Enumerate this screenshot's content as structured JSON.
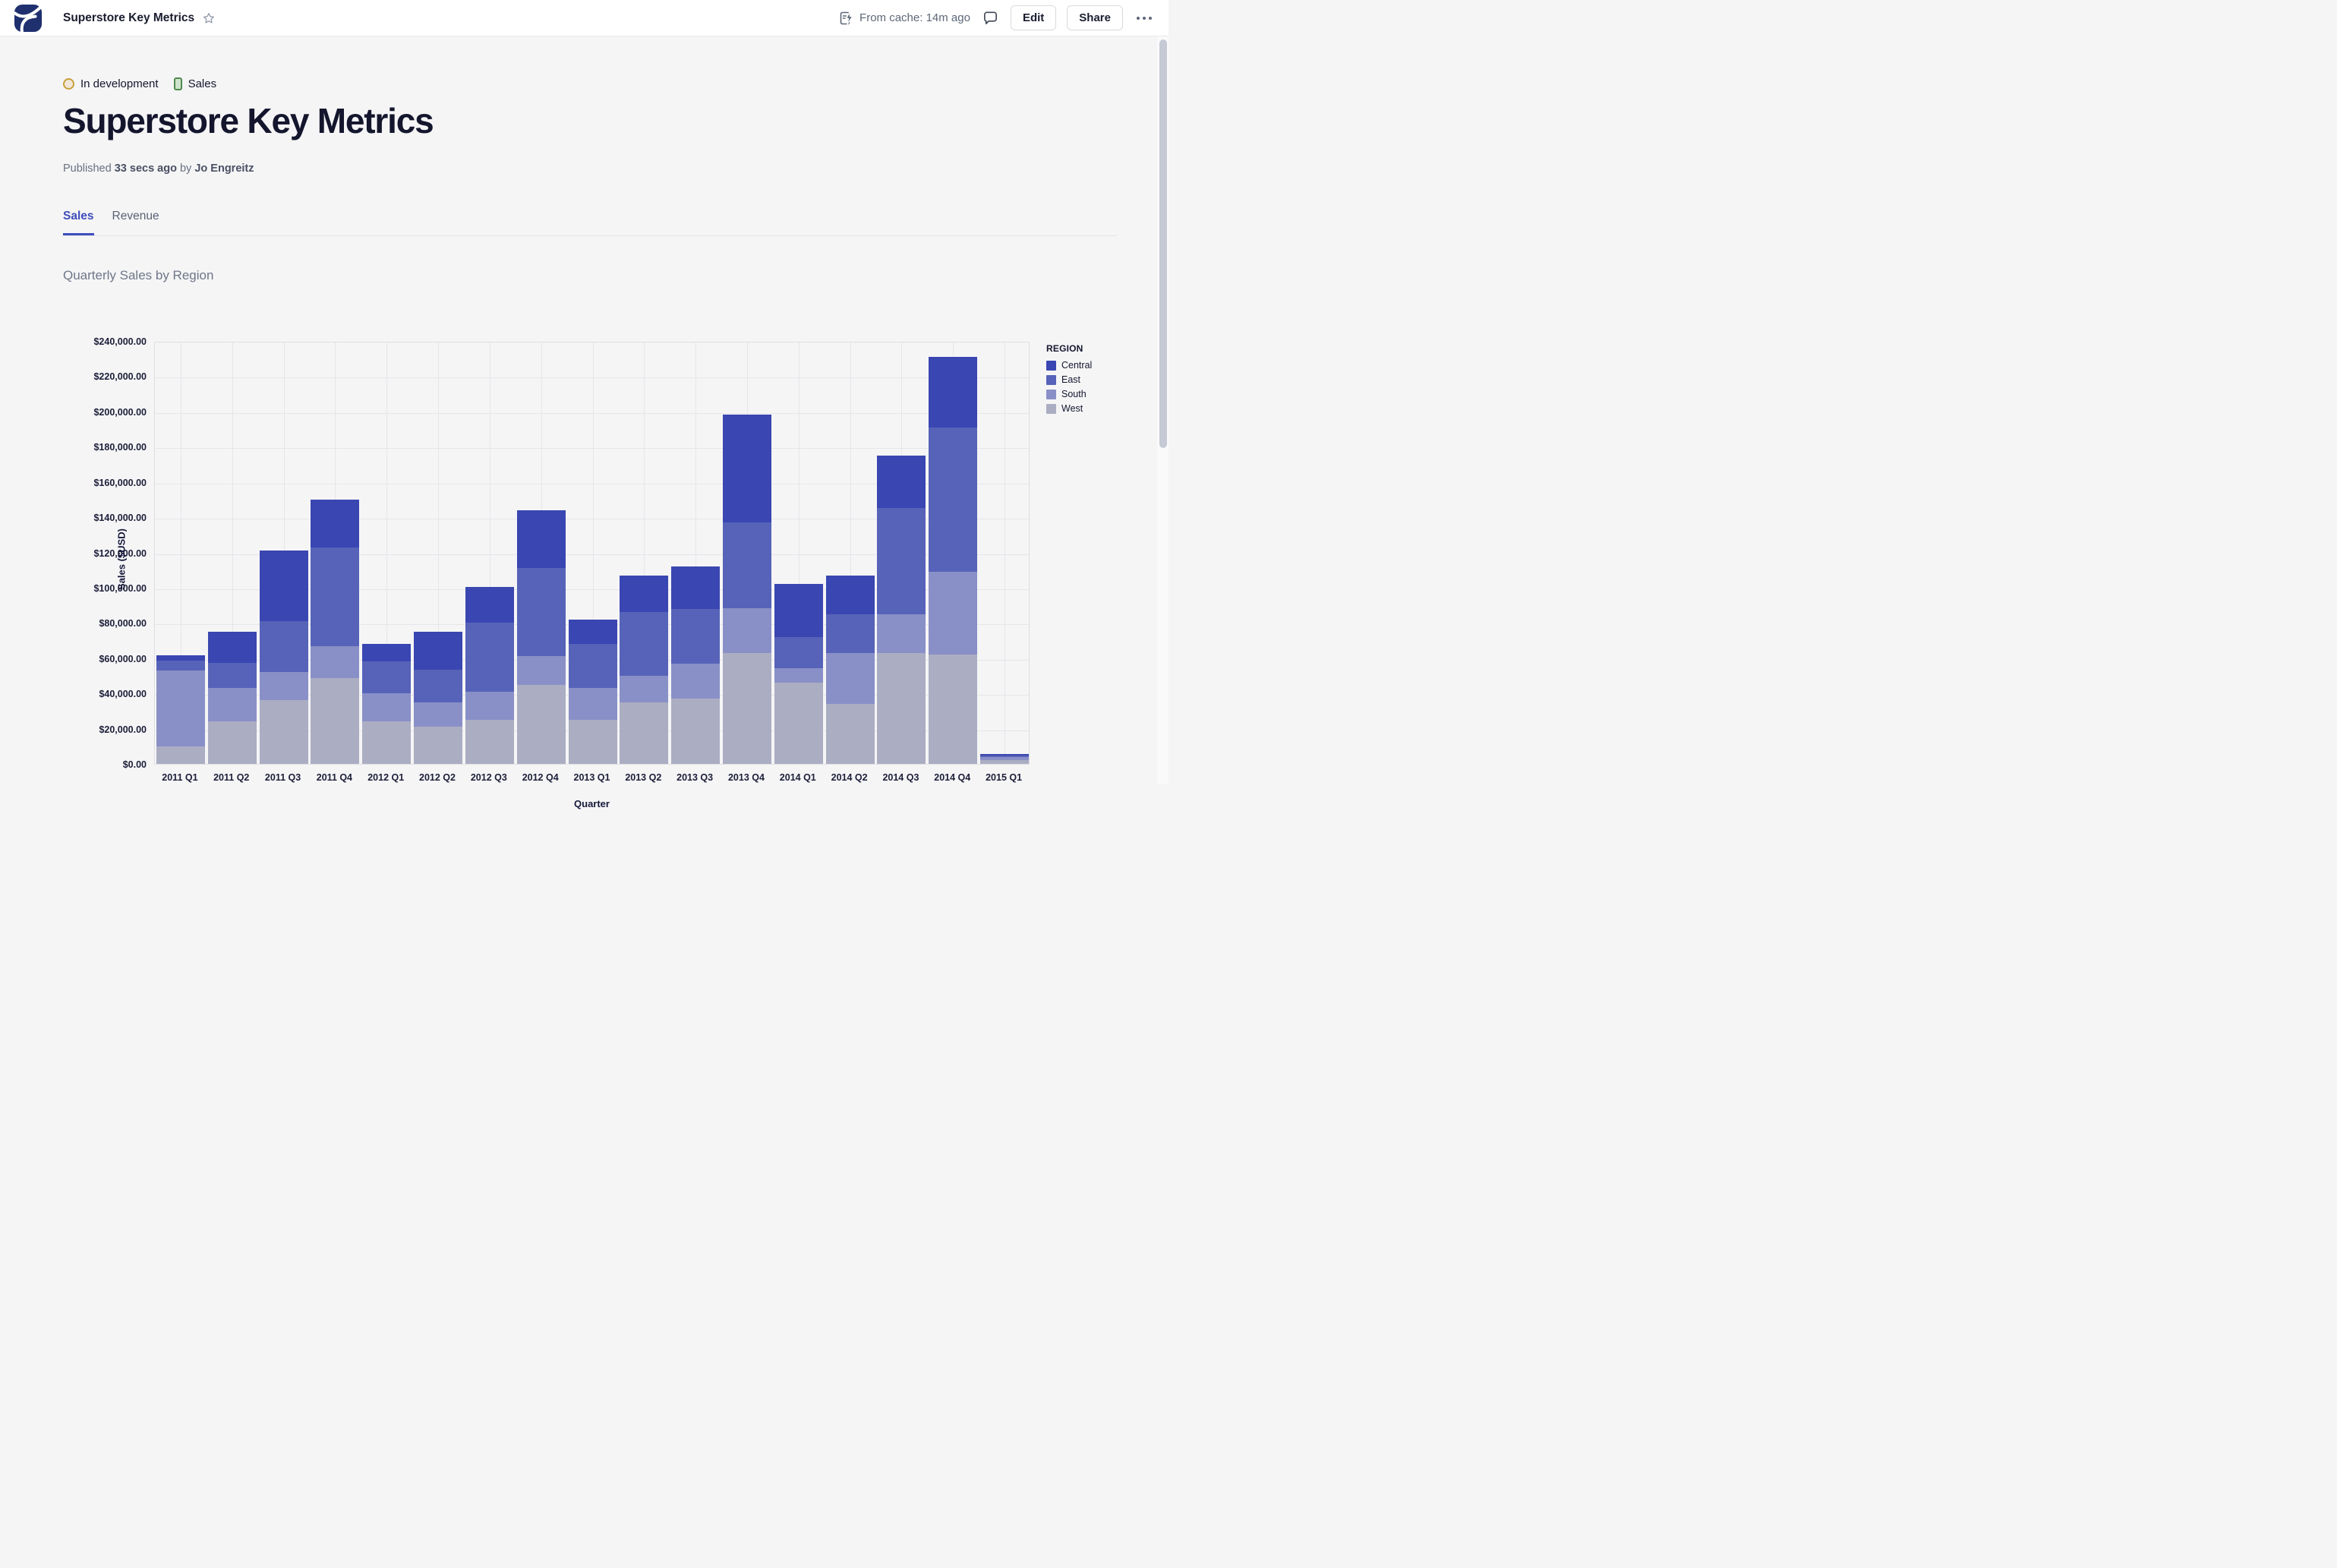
{
  "header": {
    "app_title": "Superstore Key Metrics",
    "cache_status": "From cache: 14m ago",
    "edit_label": "Edit",
    "share_label": "Share"
  },
  "badges": {
    "status_label": "In development",
    "category_label": "Sales"
  },
  "page": {
    "title": "Superstore Key Metrics",
    "published_prefix": "Published",
    "published_time": "33 secs ago",
    "by_label": "by",
    "author": "Jo Engreitz"
  },
  "tabs": [
    {
      "label": "Sales",
      "active": true
    },
    {
      "label": "Revenue",
      "active": false
    }
  ],
  "section": {
    "chart_title": "Quarterly Sales by Region"
  },
  "chart_data": {
    "type": "bar",
    "stacked": true,
    "title": "Quarterly Sales by Region",
    "xlabel": "Quarter",
    "ylabel": "Sales ($USD)",
    "ylim": [
      0,
      240000
    ],
    "ytick_step": 20000,
    "ytick_labels": [
      "$0.00",
      "$20,000.00",
      "$40,000.00",
      "$60,000.00",
      "$80,000.00",
      "$100,000.00",
      "$120,000.00",
      "$140,000.00",
      "$160,000.00",
      "$180,000.00",
      "$200,000.00",
      "$220,000.00",
      "$240,000.00"
    ],
    "grid": true,
    "legend_title": "REGION",
    "legend_position": "right",
    "categories": [
      "2011 Q1",
      "2011 Q2",
      "2011 Q3",
      "2011 Q4",
      "2012 Q1",
      "2012 Q2",
      "2012 Q3",
      "2012 Q4",
      "2013 Q1",
      "2013 Q2",
      "2013 Q3",
      "2013 Q4",
      "2014 Q1",
      "2014 Q2",
      "2014 Q3",
      "2014 Q4",
      "2015 Q1"
    ],
    "stack_order_bottom_to_top": [
      "West",
      "South",
      "East",
      "Central"
    ],
    "series": [
      {
        "name": "Central",
        "color": "#3a46b1",
        "values": [
          3000,
          17500,
          40000,
          27000,
          10000,
          21500,
          20500,
          33000,
          14000,
          21000,
          24000,
          61000,
          30000,
          22000,
          30000,
          40000,
          900
        ]
      },
      {
        "name": "East",
        "color": "#5763b8",
        "values": [
          5500,
          14500,
          29000,
          56000,
          18000,
          18500,
          39000,
          50000,
          25000,
          36000,
          31000,
          48500,
          17500,
          22000,
          60000,
          82000,
          800
        ]
      },
      {
        "name": "South",
        "color": "#8990c7",
        "values": [
          43000,
          19000,
          16000,
          18500,
          16000,
          14000,
          16000,
          16000,
          18000,
          15000,
          20000,
          25500,
          8500,
          29000,
          22000,
          47000,
          1700
        ]
      },
      {
        "name": "West",
        "color": "#abadc2",
        "values": [
          10000,
          24000,
          36000,
          48500,
          24000,
          21000,
          25000,
          45000,
          25000,
          35000,
          37000,
          63000,
          46000,
          34000,
          63000,
          62000,
          2300
        ]
      }
    ]
  },
  "colors": {
    "accent": "#3e4dbb",
    "page_bg": "#f5f5f6",
    "header_bg": "#ffffff",
    "text_dark": "#14162e",
    "text_gray": "#6a7080",
    "gridline": "#e6e6ea",
    "status_border": "#c99f3a",
    "category_border": "#4e8a4e"
  },
  "icons": {
    "logo": "hex-logo",
    "star": "star-icon",
    "cache": "cache-lightning-icon",
    "comment": "comment-icon",
    "more": "more-dots-icon"
  }
}
